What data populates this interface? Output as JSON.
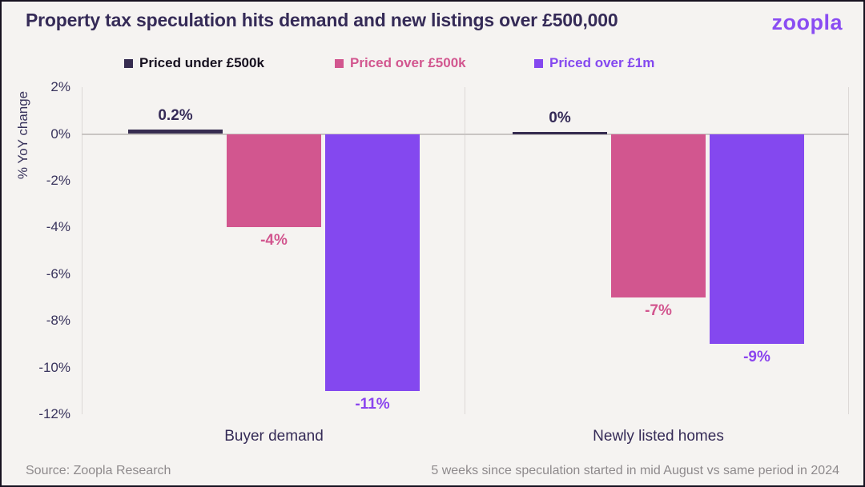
{
  "header": {
    "title": "Property tax speculation hits demand and new listings over £500,000",
    "logo_text": "zoopla"
  },
  "legend": [
    {
      "label": "Priced under £500k",
      "swatch_color": "#362c50",
      "text_color": "#16101f"
    },
    {
      "label": "Priced over £500k",
      "swatch_color": "#d2568f",
      "text_color": "#d2568f"
    },
    {
      "label": "Priced over £1m",
      "swatch_color": "#8448ef",
      "text_color": "#8448ef"
    }
  ],
  "chart_data": {
    "type": "bar",
    "title": "Property tax speculation hits demand and new listings over £500,000",
    "ylabel": "% YoY change",
    "ylim": [
      -12,
      2
    ],
    "yticks": [
      "2%",
      "0%",
      "-2%",
      "-4%",
      "-6%",
      "-8%",
      "-10%",
      "-12%"
    ],
    "grid": "zero-line-only",
    "legend_position": "top",
    "categories": [
      "Buyer demand",
      "Newly listed homes"
    ],
    "series": [
      {
        "name": "Priced under £500k",
        "color": "#362c50",
        "label_color": "#352b57",
        "values": [
          0.2,
          0
        ],
        "value_labels": [
          "0.2%",
          "0%"
        ]
      },
      {
        "name": "Priced over £500k",
        "color": "#d2568f",
        "label_color": "#d2568f",
        "values": [
          -4,
          -7
        ],
        "value_labels": [
          "-4%",
          "-7%"
        ]
      },
      {
        "name": "Priced over £1m",
        "color": "#8448ef",
        "label_color": "#8b45ee",
        "values": [
          -11,
          -9
        ],
        "value_labels": [
          "-11%",
          "-9%"
        ]
      }
    ]
  },
  "footer": {
    "source": "Source: Zoopla Research",
    "note": "5 weeks since speculation started in mid August vs same period in 2024"
  }
}
